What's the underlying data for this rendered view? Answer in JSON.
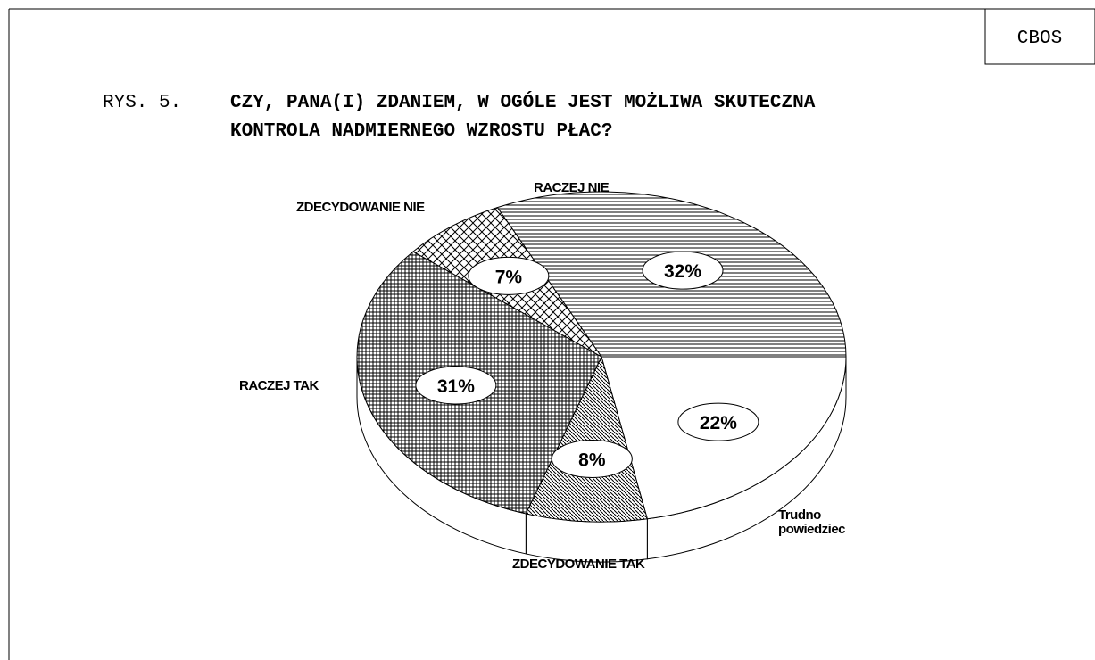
{
  "source_box": "CBOS",
  "chart_data": {
    "type": "pie",
    "figure_label": "RYS. 5.",
    "title": [
      "CZY, PANA(I) ZDANIEM, W OGÓLE JEST MOŻLIWA SKUTECZNA",
      "KONTROLA NADMIERNEGO WZROSTU PŁAC?"
    ],
    "categories": [
      "RACZEJ NIE",
      "Trudno powiedziec",
      "ZDECYDOWANIE TAK",
      "RACZEJ TAK",
      "ZDECYDOWANIE NIE"
    ],
    "values": [
      32,
      22,
      8,
      31,
      7
    ],
    "value_labels": [
      "32%",
      "22%",
      "8%",
      "31%",
      "7%"
    ],
    "patterns": [
      "horizontal",
      "none",
      "diagonal",
      "grid",
      "crosshatch"
    ],
    "color": "#000000"
  }
}
